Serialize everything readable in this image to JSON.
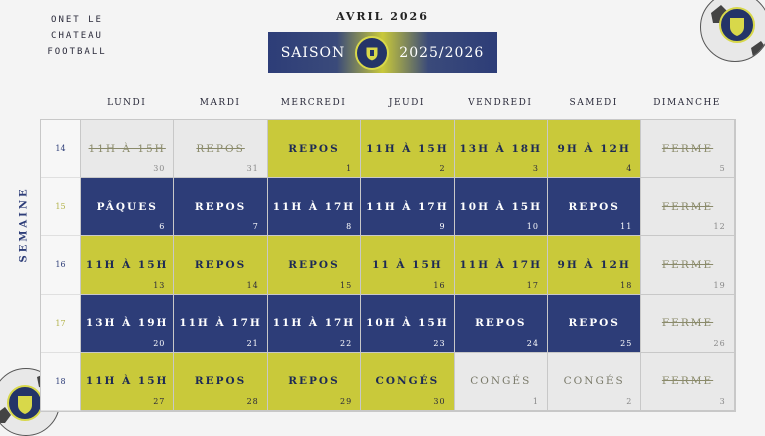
{
  "header": {
    "club_line1": "ONET LE CHATEAU",
    "club_line2": "FOOTBALL",
    "month": "AVRIL 2026",
    "season_label": "SAISON",
    "season_years": "2025/2026"
  },
  "axis_label": "SEMAINE",
  "days": [
    "LUNDI",
    "MARDI",
    "MERCREDI",
    "JEUDI",
    "VENDREDI",
    "SAMEDI",
    "DIMANCHE"
  ],
  "weeks": [
    {
      "week": "14",
      "cells": [
        {
          "text": "11H À 15H",
          "day": "30",
          "style": "g",
          "strike": true
        },
        {
          "text": "REPOS",
          "day": "31",
          "style": "g",
          "strike": true
        },
        {
          "text": "REPOS",
          "day": "1",
          "style": "y"
        },
        {
          "text": "11H À 15H",
          "day": "2",
          "style": "y"
        },
        {
          "text": "13H À 18H",
          "day": "3",
          "style": "y"
        },
        {
          "text": "9H À 12H",
          "day": "4",
          "style": "y"
        },
        {
          "text": "FERME",
          "day": "5",
          "style": "g",
          "strike": true
        }
      ]
    },
    {
      "week": "15",
      "cells": [
        {
          "text": "PÂQUES",
          "day": "6",
          "style": "b"
        },
        {
          "text": "REPOS",
          "day": "7",
          "style": "b"
        },
        {
          "text": "11H À 17H",
          "day": "8",
          "style": "b"
        },
        {
          "text": "11H À 17H",
          "day": "9",
          "style": "b"
        },
        {
          "text": "10H À 15H",
          "day": "10",
          "style": "b"
        },
        {
          "text": "REPOS",
          "day": "11",
          "style": "b"
        },
        {
          "text": "FERME",
          "day": "12",
          "style": "g",
          "strike": true
        }
      ]
    },
    {
      "week": "16",
      "cells": [
        {
          "text": "11H À 15H",
          "day": "13",
          "style": "y"
        },
        {
          "text": "REPOS",
          "day": "14",
          "style": "y"
        },
        {
          "text": "REPOS",
          "day": "15",
          "style": "y"
        },
        {
          "text": "11 À 15H",
          "day": "16",
          "style": "y"
        },
        {
          "text": "11H À 17H",
          "day": "17",
          "style": "y"
        },
        {
          "text": "9H À 12H",
          "day": "18",
          "style": "y"
        },
        {
          "text": "FERME",
          "day": "19",
          "style": "g",
          "strike": true
        }
      ]
    },
    {
      "week": "17",
      "cells": [
        {
          "text": "13H À 19H",
          "day": "20",
          "style": "b"
        },
        {
          "text": "11H À 17H",
          "day": "21",
          "style": "b"
        },
        {
          "text": "11H À 17H",
          "day": "22",
          "style": "b"
        },
        {
          "text": "10H À 15H",
          "day": "23",
          "style": "b"
        },
        {
          "text": "REPOS",
          "day": "24",
          "style": "b"
        },
        {
          "text": "REPOS",
          "day": "25",
          "style": "b"
        },
        {
          "text": "FERME",
          "day": "26",
          "style": "g",
          "strike": true
        }
      ]
    },
    {
      "week": "18",
      "cells": [
        {
          "text": "11H À 15H",
          "day": "27",
          "style": "y"
        },
        {
          "text": "REPOS",
          "day": "28",
          "style": "y"
        },
        {
          "text": "REPOS",
          "day": "29",
          "style": "y"
        },
        {
          "text": "CONGÉS",
          "day": "30",
          "style": "y"
        },
        {
          "text": "CONGÉS",
          "day": "1",
          "style": "g"
        },
        {
          "text": "CONGÉS",
          "day": "2",
          "style": "g"
        },
        {
          "text": "FERME",
          "day": "3",
          "style": "g",
          "strike": true
        }
      ]
    }
  ],
  "colors": {
    "yellow": "#c9c93a",
    "blue": "#2d3d78",
    "gray": "#e9e9e9"
  }
}
